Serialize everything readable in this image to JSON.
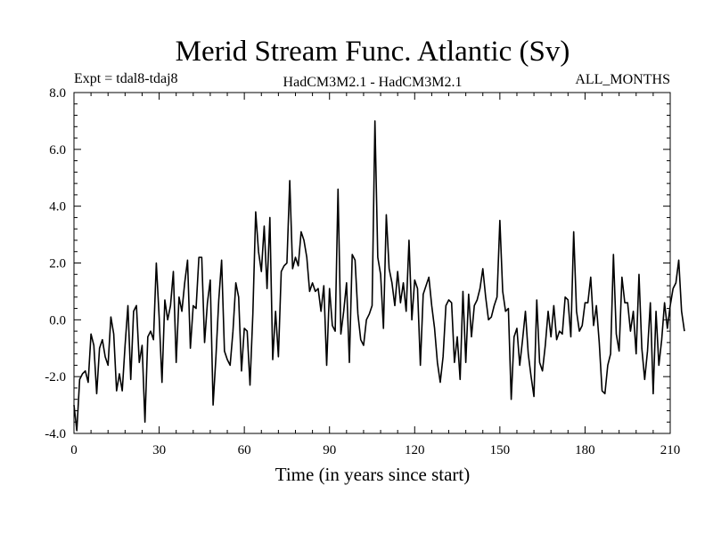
{
  "chart_data": {
    "type": "line",
    "title": "Merid Stream Func. Atlantic (Sv)",
    "subtitle_left": "Expt = tdal8-tdaj8",
    "subtitle_center": "HadCM3M2.1 - HadCM3M2.1",
    "subtitle_right": "ALL_MONTHS",
    "xlabel": "Time (in years since start)",
    "ylabel": "",
    "xlim": [
      0,
      210
    ],
    "ylim": [
      -4.0,
      8.0
    ],
    "x_ticks": [
      0,
      30,
      60,
      90,
      120,
      150,
      180,
      210
    ],
    "x_tick_labels": [
      "0",
      "30",
      "60",
      "90",
      "120",
      "150",
      "180",
      "210"
    ],
    "y_ticks": [
      -4.0,
      -2.0,
      0.0,
      2.0,
      4.0,
      6.0,
      8.0
    ],
    "y_tick_labels": [
      "-4.0",
      "-2.0",
      "0.0",
      "2.0",
      "4.0",
      "6.0",
      "8.0"
    ],
    "grid": false,
    "series_color": "#000000",
    "series": [
      {
        "x_start": 0,
        "x_step": 1,
        "values": [
          -3.0,
          -3.9,
          -2.1,
          -1.9,
          -1.8,
          -2.2,
          -0.5,
          -0.9,
          -2.6,
          -1.0,
          -0.7,
          -1.3,
          -1.6,
          0.1,
          -0.5,
          -2.5,
          -1.9,
          -2.5,
          -0.9,
          0.5,
          -2.1,
          0.3,
          0.5,
          -1.5,
          -0.9,
          -3.6,
          -0.6,
          -0.4,
          -0.7,
          2.0,
          0.1,
          -2.2,
          0.7,
          0.0,
          0.5,
          1.7,
          -1.5,
          0.8,
          0.3,
          1.3,
          2.1,
          -1.0,
          0.5,
          0.4,
          2.2,
          2.2,
          -0.8,
          0.6,
          1.4,
          -3.0,
          -1.3,
          0.7,
          2.1,
          -1.1,
          -1.4,
          -1.6,
          -0.4,
          1.3,
          0.8,
          -1.8,
          -0.3,
          -0.4,
          -2.3,
          0.2,
          3.8,
          2.4,
          1.7,
          3.3,
          1.1,
          3.6,
          -1.4,
          0.3,
          -1.3,
          1.7,
          1.9,
          2.0,
          4.9,
          1.8,
          2.2,
          1.9,
          3.1,
          2.8,
          2.2,
          1.0,
          1.3,
          1.0,
          1.1,
          0.3,
          1.2,
          -1.6,
          1.1,
          -0.2,
          -0.4,
          4.6,
          -0.5,
          0.3,
          1.3,
          -1.5,
          2.3,
          2.1,
          0.2,
          -0.7,
          -0.9,
          0.0,
          0.2,
          0.5,
          7.0,
          2.2,
          1.6,
          -0.3,
          3.7,
          1.8,
          1.3,
          0.5,
          1.7,
          0.6,
          1.3,
          0.3,
          2.8,
          0.0,
          1.4,
          1.1,
          -1.6,
          0.9,
          1.2,
          1.5,
          0.5,
          -0.3,
          -1.5,
          -2.2,
          -1.3,
          0.5,
          0.7,
          0.6,
          -1.5,
          -0.6,
          -2.1,
          1.0,
          -1.5,
          0.9,
          -0.6,
          0.5,
          0.7,
          1.1,
          1.8,
          0.8,
          0.0,
          0.1,
          0.5,
          0.8,
          3.5,
          1.0,
          0.3,
          0.4,
          -2.8,
          -0.6,
          -0.3,
          -1.6,
          -0.7,
          0.3,
          -1.2,
          -2.0,
          -2.7,
          0.7,
          -1.5,
          -1.8,
          -0.9,
          0.3,
          -0.6,
          0.5,
          -0.7,
          -0.4,
          -0.5,
          0.8,
          0.7,
          -0.6,
          3.1,
          0.3,
          -0.4,
          -0.2,
          0.6,
          0.6,
          1.5,
          -0.2,
          0.5,
          -0.8,
          -2.5,
          -2.6,
          -1.6,
          -1.2,
          2.3,
          -0.5,
          -1.1,
          1.5,
          0.6,
          0.6,
          -0.4,
          0.3,
          -1.2,
          1.6,
          -1.0,
          -2.1,
          -1.1,
          0.6,
          -2.6,
          0.3,
          -1.6,
          -0.7,
          0.6,
          -0.3,
          0.5,
          1.1,
          1.3,
          2.1,
          0.3,
          -0.4
        ]
      }
    ]
  }
}
